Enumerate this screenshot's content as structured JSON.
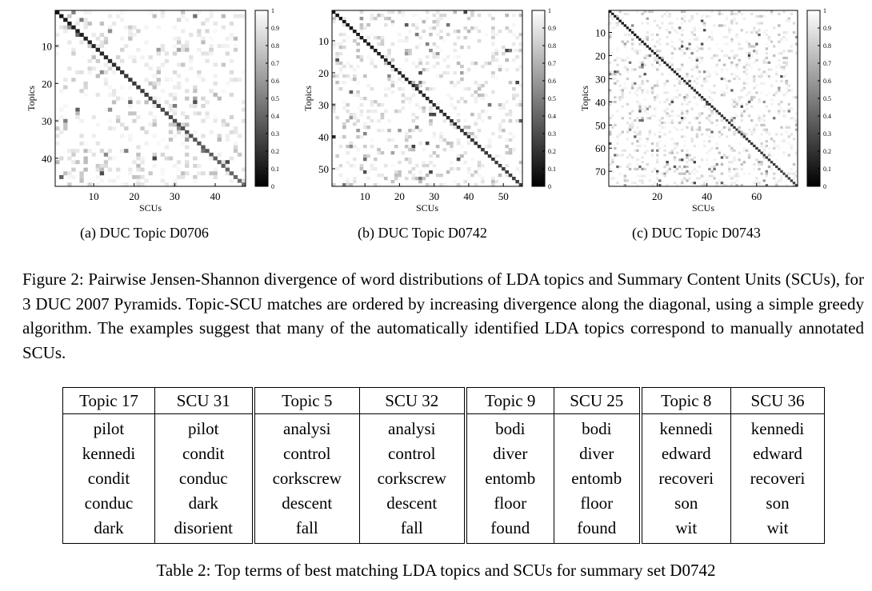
{
  "figure": {
    "panels": [
      {
        "subcaption": "(a)  DUC Topic D0706",
        "chart_data": {
          "type": "heatmap",
          "n_rows": 47,
          "n_cols": 47,
          "xlabel": "SCUs",
          "ylabel": "Topics",
          "x_ticks": [
            10,
            20,
            30,
            40
          ],
          "y_ticks": [
            10,
            20,
            30,
            40
          ],
          "colorbar_ticks": [
            "0",
            "0.1",
            "0.2",
            "0.3",
            "0.4",
            "0.5",
            "0.6",
            "0.7",
            "0.8",
            "0.9",
            "1"
          ],
          "colorbar_range": [
            0,
            1
          ],
          "colormap": "grayscale (0 = black, 1 = white)",
          "diagonal": "low divergence along the main diagonal, increasing toward the bottom-right"
        }
      },
      {
        "subcaption": "(b)  DUC Topic D0742",
        "chart_data": {
          "type": "heatmap",
          "n_rows": 55,
          "n_cols": 55,
          "xlabel": "SCUs",
          "ylabel": "Topics",
          "x_ticks": [
            10,
            20,
            30,
            40,
            50
          ],
          "y_ticks": [
            10,
            20,
            30,
            40,
            50
          ],
          "colorbar_ticks": [
            "0",
            "0.1",
            "0.2",
            "0.3",
            "0.4",
            "0.5",
            "0.6",
            "0.7",
            "0.8",
            "0.9",
            "1"
          ],
          "colorbar_range": [
            0,
            1
          ],
          "colormap": "grayscale (0 = black, 1 = white)",
          "diagonal": "low divergence along the main diagonal"
        }
      },
      {
        "subcaption": "(c)  DUC Topic D0743",
        "chart_data": {
          "type": "heatmap",
          "n_rows": 76,
          "n_cols": 76,
          "xlabel": "SCUs",
          "ylabel": "Topics",
          "x_ticks": [
            20,
            40,
            60
          ],
          "y_ticks": [
            10,
            20,
            30,
            40,
            50,
            60,
            70
          ],
          "colorbar_ticks": [
            "0",
            "0.1",
            "0.2",
            "0.3",
            "0.4",
            "0.5",
            "0.6",
            "0.7",
            "0.8",
            "0.9",
            "1"
          ],
          "colorbar_range": [
            0,
            1
          ],
          "colormap": "grayscale (0 = black, 1 = white)",
          "diagonal": "low divergence along the main diagonal"
        }
      }
    ],
    "caption": "Figure 2: Pairwise Jensen-Shannon divergence of word distributions of LDA topics and Summary Content Units (SCUs), for 3 DUC 2007 Pyramids. Topic-SCU matches are ordered by increasing divergence along the diagonal, using a simple greedy algorithm. The examples suggest that many of the automatically identified LDA topics correspond to manually annotated SCUs."
  },
  "table": {
    "headers": [
      "Topic 17",
      "SCU 31",
      "Topic 5",
      "SCU 32",
      "Topic 9",
      "SCU 25",
      "Topic 8",
      "SCU 36"
    ],
    "rows": [
      [
        "pilot",
        "pilot",
        "analysi",
        "analysi",
        "bodi",
        "bodi",
        "kennedi",
        "kennedi"
      ],
      [
        "kennedi",
        "condit",
        "control",
        "control",
        "diver",
        "diver",
        "edward",
        "edward"
      ],
      [
        "condit",
        "conduc",
        "corkscrew",
        "corkscrew",
        "entomb",
        "entomb",
        "recoveri",
        "recoveri"
      ],
      [
        "conduc",
        "dark",
        "descent",
        "descent",
        "floor",
        "floor",
        "son",
        "son"
      ],
      [
        "dark",
        "disorient",
        "fall",
        "fall",
        "found",
        "found",
        "wit",
        "wit"
      ]
    ],
    "caption": "Table 2: Top terms of best matching LDA topics and SCUs for summary set D0742"
  }
}
